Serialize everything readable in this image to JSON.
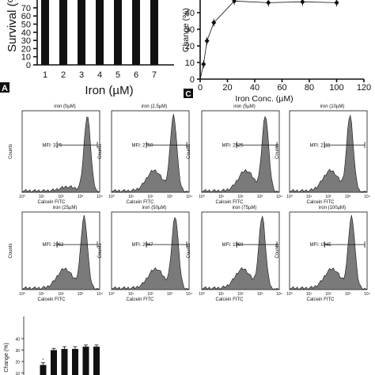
{
  "chart_data": [
    {
      "panel": "A",
      "type": "bar",
      "ylabel": "Survival (%",
      "xlabel": "Iron (µM)",
      "categories": [
        "1",
        "2",
        "3",
        "4",
        "5",
        "6",
        "7"
      ],
      "yticks": [
        "70",
        "60",
        "50",
        "40",
        "30",
        "20",
        "10",
        "0"
      ],
      "ylim": [
        0,
        80
      ],
      "values": [
        100,
        100,
        100,
        100,
        100,
        100,
        100
      ],
      "panel_label": "A"
    },
    {
      "panel": "C",
      "type": "line",
      "ylabel": "Change (%)",
      "xlabel": "Iron Conc. (µM)",
      "xticks": [
        "0",
        "20",
        "40",
        "60",
        "80",
        "100",
        "120"
      ],
      "yticks": [
        "40",
        "30",
        "20",
        "10",
        "0"
      ],
      "xlim": [
        0,
        120
      ],
      "ylim": [
        0,
        52
      ],
      "x": [
        2.5,
        5,
        10,
        25,
        50,
        75,
        100
      ],
      "y": [
        9,
        23,
        34,
        47,
        46,
        46.5,
        46
      ],
      "panel_label": "C"
    },
    {
      "panel": "flow",
      "type": "histogram-grid",
      "ylabel": "Counts",
      "xlabel": "Calcein FITC",
      "xtick_labels": [
        "10⁰",
        "10¹",
        "10²",
        "10³",
        "10⁴"
      ],
      "panels": [
        {
          "title": "iron (0µM)",
          "mfi": "MFI: 31'5"
        },
        {
          "title": "iron (2.5µM)",
          "mfi": "MFI: 2750"
        },
        {
          "title": "iron (5µM)",
          "mfi": "MFI: 2525"
        },
        {
          "title": "iron (10µM)",
          "mfi": "MFI: 2111"
        },
        {
          "title": "iron (25µM)",
          "mfi": "MFI: 2062"
        },
        {
          "title": "iron (50µM)",
          "mfi": "MFI: 2047"
        },
        {
          "title": "iron (75µM)",
          "mfi": "MFI: 1969"
        },
        {
          "title": "iron (100µM)",
          "mfi": "MFI: 1945"
        }
      ],
      "panel_xlabels": [
        "Calcein FITC",
        "Calcein FITC",
        "Calcein FITC",
        "Calcein FITC",
        "Calcein FITC",
        "Calcein FITC",
        "Calcein FITC",
        "Calcein FITC"
      ]
    },
    {
      "panel": "bottom",
      "type": "bar",
      "ylabel": "Change (%)",
      "yticks": [
        "40",
        "30",
        "20",
        "10",
        "0"
      ],
      "ylim": [
        0,
        40
      ],
      "values": [
        2,
        17,
        30,
        31,
        31,
        33,
        33
      ],
      "errors": [
        1,
        2,
        1.5,
        2,
        2,
        1.5,
        1.5
      ],
      "significance": [
        "*",
        "*",
        "",
        "",
        "",
        "",
        ""
      ]
    }
  ]
}
